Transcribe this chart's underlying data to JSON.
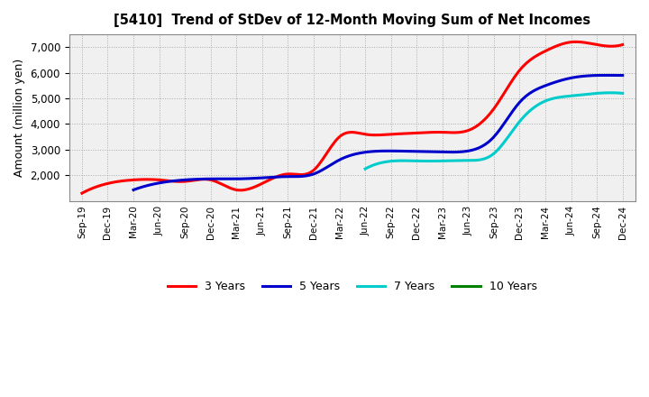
{
  "title": "[5410]  Trend of StDev of 12-Month Moving Sum of Net Incomes",
  "ylabel": "Amount (million yen)",
  "background_color": "#ffffff",
  "plot_bg_color": "#f0f0f0",
  "grid_color": "#aaaaaa",
  "x_labels": [
    "Sep-19",
    "Dec-19",
    "Mar-20",
    "Jun-20",
    "Sep-20",
    "Dec-20",
    "Mar-21",
    "Jun-21",
    "Sep-21",
    "Dec-21",
    "Mar-22",
    "Jun-22",
    "Sep-22",
    "Dec-22",
    "Mar-23",
    "Jun-23",
    "Sep-23",
    "Dec-23",
    "Mar-24",
    "Jun-24",
    "Sep-24",
    "Dec-24"
  ],
  "series": {
    "3 Years": {
      "color": "#ff0000",
      "data": [
        1300,
        1680,
        1820,
        1820,
        1760,
        1820,
        1430,
        1680,
        2050,
        2200,
        3500,
        3600,
        3600,
        3650,
        3680,
        3750,
        4600,
        6100,
        6850,
        7200,
        7100,
        7100
      ]
    },
    "5 Years": {
      "color": "#0000cc",
      "data": [
        null,
        null,
        1430,
        1700,
        1820,
        1860,
        1860,
        1900,
        1950,
        2050,
        2600,
        2900,
        2950,
        2930,
        2910,
        2950,
        3500,
        4850,
        5500,
        5800,
        5900,
        5900
      ]
    },
    "7 Years": {
      "color": "#00cccc",
      "data": [
        null,
        null,
        null,
        null,
        null,
        null,
        null,
        null,
        null,
        null,
        null,
        2250,
        2550,
        2560,
        2560,
        2580,
        2850,
        4100,
        4900,
        5100,
        5200,
        5200
      ]
    },
    "10 Years": {
      "color": "#008000",
      "data": [
        null,
        null,
        null,
        null,
        null,
        null,
        null,
        null,
        null,
        null,
        null,
        null,
        null,
        null,
        null,
        null,
        null,
        null,
        null,
        null,
        null,
        null
      ]
    }
  },
  "ylim": [
    1000,
    7500
  ],
  "yticks": [
    2000,
    3000,
    4000,
    5000,
    6000,
    7000
  ],
  "legend_labels": [
    "3 Years",
    "5 Years",
    "7 Years",
    "10 Years"
  ],
  "legend_colors": [
    "#ff0000",
    "#0000cc",
    "#00cccc",
    "#008000"
  ]
}
